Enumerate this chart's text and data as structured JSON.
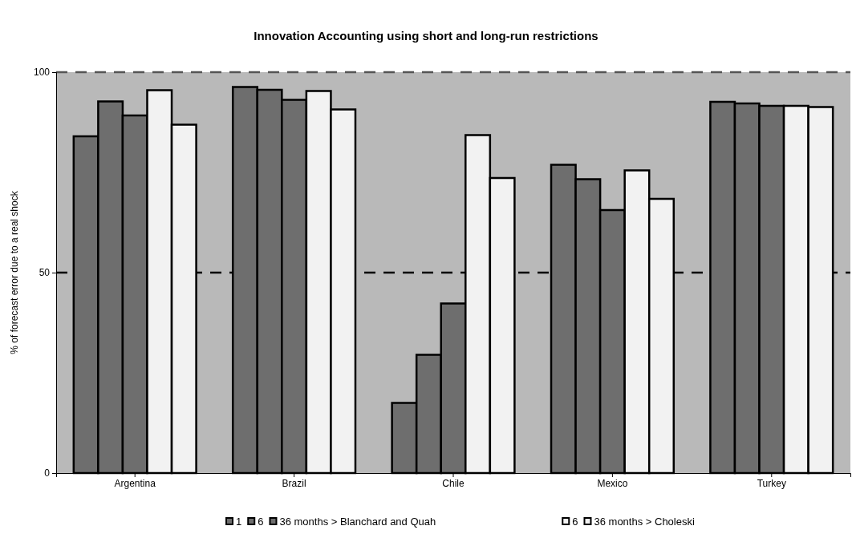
{
  "chart_data": {
    "type": "bar",
    "title": "Innovation Accounting using short and long-run restrictions",
    "ylabel": "% of forecast error due to a real shock",
    "categories": [
      "Argentina",
      "Brazil",
      "Chile",
      "Mexico",
      "Turkey"
    ],
    "series": [
      {
        "name": "1",
        "color": "#6e6e6e",
        "values": [
          84,
          96.3,
          17.5,
          76.9,
          92.6
        ]
      },
      {
        "name": "6",
        "color": "#6e6e6e",
        "values": [
          92.7,
          95.6,
          29.5,
          73.3,
          92.2
        ]
      },
      {
        "name": "36 months > Blanchard and Quah",
        "color": "#6e6e6e",
        "values": [
          89.2,
          93.1,
          42.3,
          65.6,
          91.6
        ]
      },
      {
        "name": "6",
        "color": "#f2f2f2",
        "values": [
          95.5,
          95.3,
          84.3,
          75.5,
          91.6
        ]
      },
      {
        "name": "36 months > Choleski",
        "color": "#f2f2f2",
        "values": [
          86.9,
          90.7,
          73.6,
          68.4,
          91.3
        ]
      }
    ],
    "ylim": [
      0,
      100
    ],
    "yticks": [
      0,
      50,
      100
    ],
    "ref_lines": [
      {
        "axis": "y",
        "value": 50,
        "line_style": "dashed",
        "color": "#000000"
      },
      {
        "axis": "y",
        "value": 100,
        "line_style": "dashed",
        "color": "#555555"
      }
    ],
    "legend": "bottom",
    "grid": false
  }
}
